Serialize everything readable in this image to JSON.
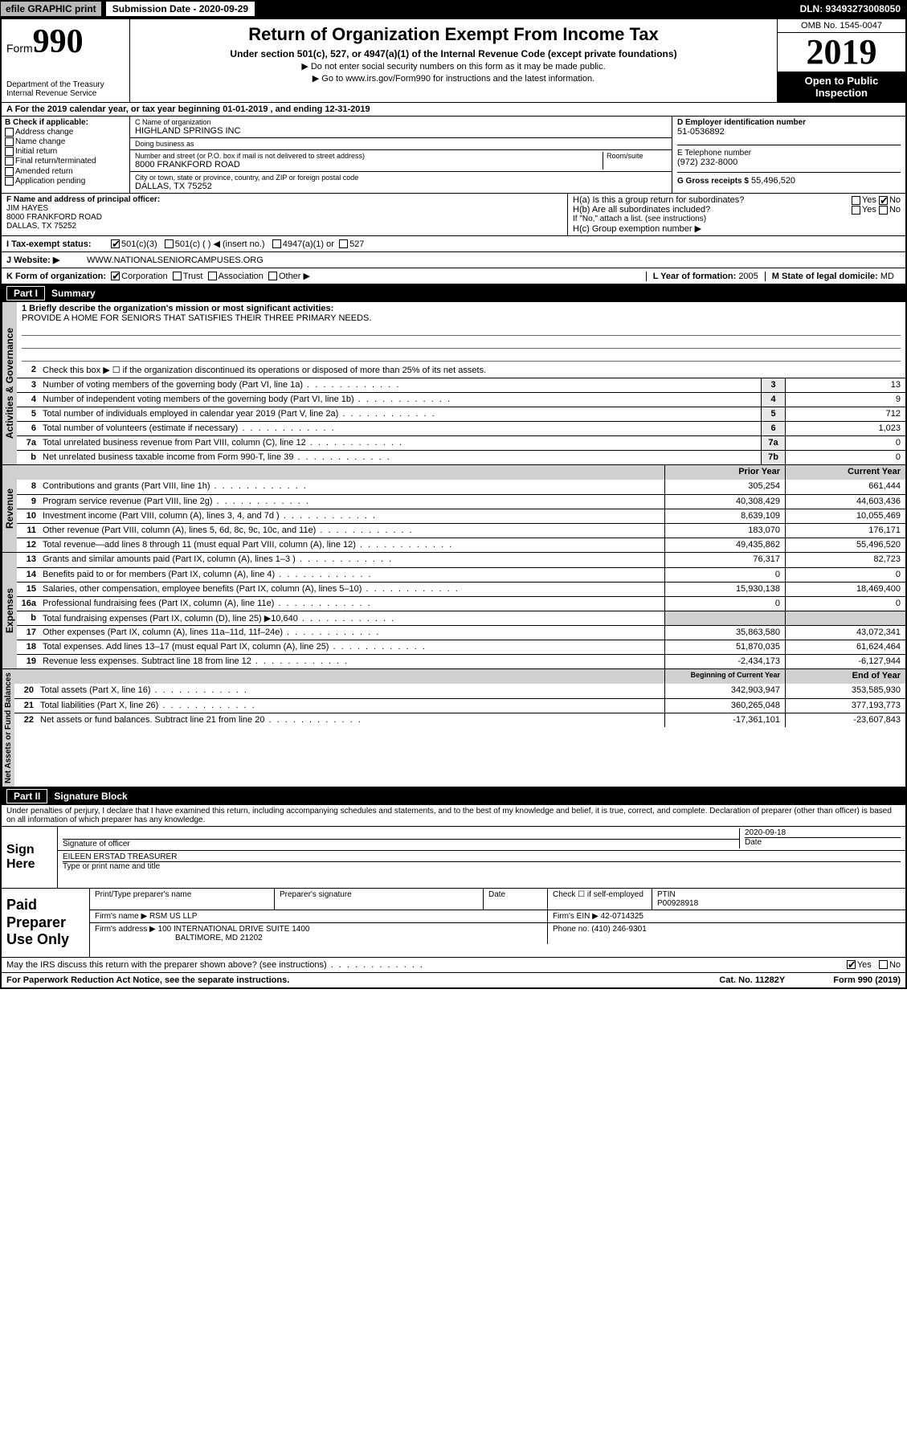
{
  "topbar": {
    "efile": "efile GRAPHIC print",
    "submission": "Submission Date - 2020-09-29",
    "dln": "DLN: 93493273008050"
  },
  "header": {
    "form_label": "Form",
    "form_num": "990",
    "dept": "Department of the Treasury\nInternal Revenue Service",
    "title": "Return of Organization Exempt From Income Tax",
    "sub1": "Under section 501(c), 527, or 4947(a)(1) of the Internal Revenue Code (except private foundations)",
    "sub2": "▶ Do not enter social security numbers on this form as it may be made public.",
    "sub3": "▶ Go to www.irs.gov/Form990 for instructions and the latest information.",
    "omb": "OMB No. 1545-0047",
    "year": "2019",
    "inspection": "Open to Public Inspection"
  },
  "a_row": "A For the 2019 calendar year, or tax year beginning 01-01-2019    , and ending 12-31-2019",
  "b_checks": {
    "title": "B Check if applicable:",
    "items": [
      "Address change",
      "Name change",
      "Initial return",
      "Final return/terminated",
      "Amended return",
      "Application pending"
    ]
  },
  "c_block": {
    "name_lbl": "C Name of organization",
    "name": "HIGHLAND SPRINGS INC",
    "dba_lbl": "Doing business as",
    "dba": "",
    "addr_lbl": "Number and street (or P.O. box if mail is not delivered to street address)",
    "room_lbl": "Room/suite",
    "addr": "8000 FRANKFORD ROAD",
    "city_lbl": "City or town, state or province, country, and ZIP or foreign postal code",
    "city": "DALLAS, TX  75252"
  },
  "d_block": {
    "lbl": "D Employer identification number",
    "val": "51-0536892"
  },
  "e_block": {
    "lbl": "E Telephone number",
    "val": "(972) 232-8000"
  },
  "g_block": {
    "lbl": "G Gross receipts $",
    "val": "55,496,520"
  },
  "f_block": {
    "lbl": "F  Name and address of principal officer:",
    "name": "JIM HAYES",
    "addr1": "8000 FRANKFORD ROAD",
    "addr2": "DALLAS, TX  75252"
  },
  "h_block": {
    "a": "H(a)  Is this a group return for subordinates?",
    "b": "H(b)  Are all subordinates included?",
    "b_note": "If \"No,\" attach a list. (see instructions)",
    "c": "H(c)  Group exemption number ▶"
  },
  "i_row": {
    "lbl": "I    Tax-exempt status:",
    "opts": [
      "501(c)(3)",
      "501(c) (  ) ◀ (insert no.)",
      "4947(a)(1) or",
      "527"
    ]
  },
  "j_row": {
    "lbl": "J   Website: ▶",
    "val": "WWW.NATIONALSENIORCAMPUSES.ORG"
  },
  "k_row": {
    "lbl": "K Form of organization:",
    "opts": [
      "Corporation",
      "Trust",
      "Association",
      "Other ▶"
    ],
    "l_lbl": "L Year of formation:",
    "l_val": "2005",
    "m_lbl": "M State of legal domicile:",
    "m_val": "MD"
  },
  "part1": {
    "num": "Part I",
    "title": "Summary"
  },
  "mission": {
    "lbl": "1  Briefly describe the organization's mission or most significant activities:",
    "text": "PROVIDE A HOME FOR SENIORS THAT SATISFIES THEIR THREE PRIMARY NEEDS."
  },
  "gov_lines": [
    {
      "n": "2",
      "t": "Check this box ▶ ☐  if the organization discontinued its operations or disposed of more than 25% of its net assets."
    },
    {
      "n": "3",
      "t": "Number of voting members of the governing body (Part VI, line 1a)",
      "box": "3",
      "v": "13"
    },
    {
      "n": "4",
      "t": "Number of independent voting members of the governing body (Part VI, line 1b)",
      "box": "4",
      "v": "9"
    },
    {
      "n": "5",
      "t": "Total number of individuals employed in calendar year 2019 (Part V, line 2a)",
      "box": "5",
      "v": "712"
    },
    {
      "n": "6",
      "t": "Total number of volunteers (estimate if necessary)",
      "box": "6",
      "v": "1,023"
    },
    {
      "n": "7a",
      "t": "Total unrelated business revenue from Part VIII, column (C), line 12",
      "box": "7a",
      "v": "0"
    },
    {
      "n": "b",
      "t": "Net unrelated business taxable income from Form 990-T, line 39",
      "box": "7b",
      "v": "0"
    }
  ],
  "two_col_hdr": {
    "prior": "Prior Year",
    "current": "Current Year"
  },
  "rev_lines": [
    {
      "n": "8",
      "t": "Contributions and grants (Part VIII, line 1h)",
      "p": "305,254",
      "c": "661,444"
    },
    {
      "n": "9",
      "t": "Program service revenue (Part VIII, line 2g)",
      "p": "40,308,429",
      "c": "44,603,436"
    },
    {
      "n": "10",
      "t": "Investment income (Part VIII, column (A), lines 3, 4, and 7d )",
      "p": "8,639,109",
      "c": "10,055,469"
    },
    {
      "n": "11",
      "t": "Other revenue (Part VIII, column (A), lines 5, 6d, 8c, 9c, 10c, and 11e)",
      "p": "183,070",
      "c": "176,171"
    },
    {
      "n": "12",
      "t": "Total revenue—add lines 8 through 11 (must equal Part VIII, column (A), line 12)",
      "p": "49,435,862",
      "c": "55,496,520"
    }
  ],
  "exp_lines": [
    {
      "n": "13",
      "t": "Grants and similar amounts paid (Part IX, column (A), lines 1–3 )",
      "p": "76,317",
      "c": "82,723"
    },
    {
      "n": "14",
      "t": "Benefits paid to or for members (Part IX, column (A), line 4)",
      "p": "0",
      "c": "0"
    },
    {
      "n": "15",
      "t": "Salaries, other compensation, employee benefits (Part IX, column (A), lines 5–10)",
      "p": "15,930,138",
      "c": "18,469,400"
    },
    {
      "n": "16a",
      "t": "Professional fundraising fees (Part IX, column (A), line 11e)",
      "p": "0",
      "c": "0"
    },
    {
      "n": "b",
      "t": "Total fundraising expenses (Part IX, column (D), line 25) ▶10,640",
      "p": "",
      "c": "",
      "shade": true
    },
    {
      "n": "17",
      "t": "Other expenses (Part IX, column (A), lines 11a–11d, 11f–24e)",
      "p": "35,863,580",
      "c": "43,072,341"
    },
    {
      "n": "18",
      "t": "Total expenses. Add lines 13–17 (must equal Part IX, column (A), line 25)",
      "p": "51,870,035",
      "c": "61,624,464"
    },
    {
      "n": "19",
      "t": "Revenue less expenses. Subtract line 18 from line 12",
      "p": "-2,434,173",
      "c": "-6,127,944"
    }
  ],
  "net_hdr": {
    "prior": "Beginning of Current Year",
    "current": "End of Year"
  },
  "net_lines": [
    {
      "n": "20",
      "t": "Total assets (Part X, line 16)",
      "p": "342,903,947",
      "c": "353,585,930"
    },
    {
      "n": "21",
      "t": "Total liabilities (Part X, line 26)",
      "p": "360,265,048",
      "c": "377,193,773"
    },
    {
      "n": "22",
      "t": "Net assets or fund balances. Subtract line 21 from line 20",
      "p": "-17,361,101",
      "c": "-23,607,843"
    }
  ],
  "part2": {
    "num": "Part II",
    "title": "Signature Block"
  },
  "penalty": "Under penalties of perjury, I declare that I have examined this return, including accompanying schedules and statements, and to the best of my knowledge and belief, it is true, correct, and complete. Declaration of preparer (other than officer) is based on all information of which preparer has any knowledge.",
  "sign": {
    "lbl": "Sign Here",
    "sig_lbl": "Signature of officer",
    "date": "2020-09-18",
    "date_lbl": "Date",
    "name": "EILEEN ERSTAD TREASURER",
    "name_lbl": "Type or print name and title"
  },
  "paid": {
    "lbl": "Paid Preparer Use Only",
    "col1": "Print/Type preparer's name",
    "col2": "Preparer's signature",
    "col3": "Date",
    "col4a": "Check ☐ if self-employed",
    "col5": "PTIN",
    "ptin": "P00928918",
    "firm_name_lbl": "Firm's name     ▶",
    "firm_name": "RSM US LLP",
    "firm_ein_lbl": "Firm's EIN ▶",
    "firm_ein": "42-0714325",
    "firm_addr_lbl": "Firm's address ▶",
    "firm_addr": "100 INTERNATIONAL DRIVE SUITE 1400",
    "firm_city": "BALTIMORE, MD  21202",
    "phone_lbl": "Phone no.",
    "phone": "(410) 246-9301"
  },
  "footer": {
    "q": "May the IRS discuss this return with the preparer shown above? (see instructions)",
    "yes": "Yes",
    "no": "No"
  },
  "final": {
    "left": "For Paperwork Reduction Act Notice, see the separate instructions.",
    "mid": "Cat. No. 11282Y",
    "right": "Form 990 (2019)"
  },
  "vtabs": {
    "gov": "Activities & Governance",
    "rev": "Revenue",
    "exp": "Expenses",
    "net": "Net Assets or Fund Balances"
  }
}
